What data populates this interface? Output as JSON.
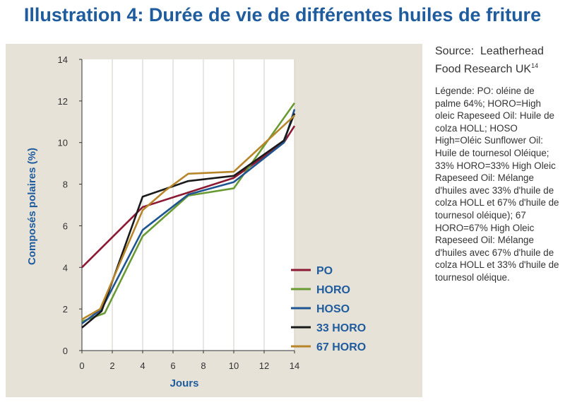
{
  "title": "Illustration 4: Durée de vie de différentes huiles de friture",
  "source": {
    "label": "Source:",
    "text": "Leatherhead Food Research UK",
    "superscript": "14"
  },
  "legend_description": {
    "label": "Légende:",
    "text": "PO: oléine de palme 64%; HORO=High oleic Rapeseed Oil: Huile de colza HOLL; HOSO High=Oléic Sunflower Oil: Huile de tournesol Oléique; 33% HORO=33% High Oleic Rapeseed Oil: Mélange d'huiles avec 33% d'huile de colza HOLL et 67% d'huile de tournesol oléique); 67 HORO=67% High Oleic Rapeseed Oil: Mélange d'huiles avec 67% d'huile de colza HOLL et 33% d'huile de tournesol oléique."
  },
  "colors": {
    "title": "#1f5c9e",
    "panel_bg": "#e6e2d8",
    "axis": "#333333",
    "PO": "#8c1a32",
    "HORO": "#6a9a34",
    "HOSO": "#1f5590",
    "33 HORO": "#1a1a1a",
    "67 HORO": "#b8862a"
  },
  "chart_data": {
    "type": "line",
    "title": "Illustration 4: Durée de vie de différentes huiles de friture",
    "xlabel": "Jours",
    "ylabel": "Composés polaires (%)",
    "xlim": [
      0,
      14
    ],
    "ylim": [
      0,
      14
    ],
    "xticks": [
      0,
      2,
      4,
      6,
      8,
      10,
      12,
      14
    ],
    "yticks": [
      0,
      2,
      4,
      6,
      8,
      10,
      12,
      14
    ],
    "grid": "vertical",
    "legend_position": "bottom-right",
    "series": [
      {
        "name": "PO",
        "color": "#8c1a32",
        "x": [
          0,
          4,
          7,
          10,
          13.3,
          14
        ],
        "y": [
          4.0,
          6.9,
          7.6,
          8.3,
          10.0,
          10.8
        ]
      },
      {
        "name": "HORO",
        "color": "#6a9a34",
        "x": [
          0,
          1.5,
          4,
          7,
          10,
          14
        ],
        "y": [
          1.4,
          1.8,
          5.5,
          7.45,
          7.8,
          11.9
        ]
      },
      {
        "name": "HOSO",
        "color": "#1f5590",
        "x": [
          0,
          1.3,
          4,
          7,
          10,
          13.3,
          14
        ],
        "y": [
          1.3,
          2.0,
          5.8,
          7.5,
          8.1,
          10.0,
          11.6
        ]
      },
      {
        "name": "33 HORO",
        "color": "#1a1a1a",
        "x": [
          0,
          1.3,
          4,
          7,
          10,
          13.3,
          14
        ],
        "y": [
          1.1,
          1.9,
          7.4,
          8.15,
          8.4,
          10.1,
          11.4
        ]
      },
      {
        "name": "67 HORO",
        "color": "#b8862a",
        "x": [
          0,
          1.2,
          4,
          5.5,
          7,
          10,
          14
        ],
        "y": [
          1.5,
          2.0,
          6.75,
          7.7,
          8.5,
          8.6,
          11.3
        ]
      }
    ]
  }
}
